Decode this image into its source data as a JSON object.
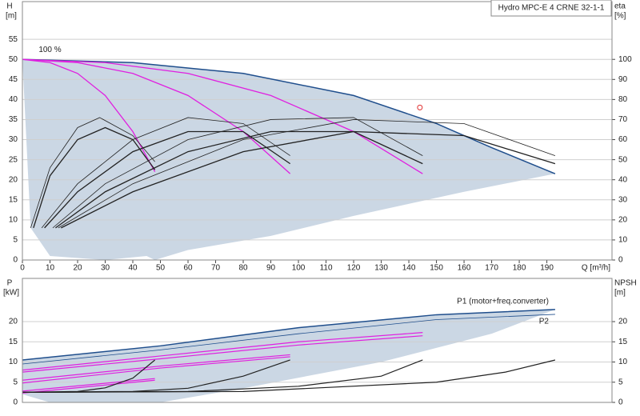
{
  "chart_data": [
    {
      "type": "line",
      "title": "Hydro MPC-E 4 CRNE 32-1-1",
      "xlabel": "Q [m³/h]",
      "ylabel": "H",
      "yunit": "[m]",
      "y2label": "eta",
      "y2unit": "[%]",
      "annotation": {
        "text": "100 %",
        "x": 10,
        "y": 51
      },
      "xlim": [
        0,
        213.6
      ],
      "xticks": [
        0,
        10,
        20,
        30,
        40,
        50,
        60,
        70,
        80,
        90,
        100,
        110,
        120,
        130,
        140,
        150,
        160,
        170,
        180,
        190
      ],
      "ylim": [
        0,
        64.4
      ],
      "yticks": [
        0,
        5,
        10,
        15,
        20,
        25,
        30,
        35,
        40,
        45,
        50,
        55
      ],
      "y2lim": [
        0,
        128.8
      ],
      "y2ticks": [
        0,
        10,
        20,
        30,
        40,
        50,
        60,
        70,
        80,
        90,
        100
      ],
      "grid": true,
      "area": {
        "color": "#cbd7e4",
        "x": [
          0,
          40,
          80,
          120,
          150,
          170,
          193,
          160,
          120,
          90,
          60,
          48,
          45,
          30,
          10,
          3,
          0
        ],
        "values": [
          50,
          49.2,
          46.5,
          41,
          34,
          28,
          21.5,
          17,
          11,
          6,
          2.5,
          0,
          1,
          0,
          1,
          8,
          50
        ]
      },
      "marker": {
        "color": "#e03030",
        "x": 144,
        "y": 38
      },
      "series": [
        {
          "color": "#1f4e8c",
          "width": 1.5,
          "x": [
            0,
            40,
            80,
            120,
            150,
            170,
            193
          ],
          "values": [
            50,
            49.2,
            46.5,
            41,
            34,
            28,
            21.5
          ]
        },
        {
          "color": "#e020e0",
          "width": 1.3,
          "x": [
            0,
            10,
            20,
            30,
            40,
            48
          ],
          "values": [
            50,
            49.2,
            46.5,
            41,
            32,
            22
          ]
        },
        {
          "color": "#e020e0",
          "width": 1.3,
          "x": [
            0,
            20,
            40,
            60,
            80,
            97
          ],
          "values": [
            50,
            49.2,
            46.5,
            41,
            32,
            21.5
          ]
        },
        {
          "color": "#e020e0",
          "width": 1.3,
          "x": [
            0,
            30,
            60,
            90,
            120,
            145
          ],
          "values": [
            50,
            49.2,
            46.5,
            41,
            32,
            21.5
          ]
        },
        {
          "color": "#222222",
          "width": 0.8,
          "axis": "y2",
          "x": [
            3,
            10,
            20,
            28,
            40,
            48
          ],
          "values": [
            16,
            46,
            66,
            71,
            62,
            49
          ]
        },
        {
          "color": "#222222",
          "width": 1.3,
          "axis": "y2",
          "x": [
            4,
            10,
            20,
            30,
            40,
            48
          ],
          "values": [
            16,
            42,
            60,
            66,
            60,
            45
          ]
        },
        {
          "color": "#222222",
          "width": 0.8,
          "axis": "y2",
          "x": [
            7,
            20,
            40,
            60,
            80,
            97
          ],
          "values": [
            16,
            38,
            60,
            71,
            68,
            52
          ]
        },
        {
          "color": "#222222",
          "width": 1.3,
          "axis": "y2",
          "x": [
            8,
            20,
            40,
            60,
            80,
            97
          ],
          "values": [
            16,
            34,
            54,
            64,
            64,
            48
          ]
        },
        {
          "color": "#222222",
          "width": 0.8,
          "axis": "y2",
          "x": [
            11,
            30,
            60,
            90,
            120,
            145
          ],
          "values": [
            16,
            38,
            60,
            70,
            71,
            52
          ]
        },
        {
          "color": "#222222",
          "width": 1.3,
          "axis": "y2",
          "x": [
            12,
            30,
            60,
            90,
            120,
            145
          ],
          "values": [
            16,
            34,
            54,
            64,
            64,
            48
          ]
        },
        {
          "color": "#222222",
          "width": 0.8,
          "axis": "y2",
          "x": [
            13,
            40,
            80,
            120,
            160,
            193
          ],
          "values": [
            16,
            38,
            60,
            70,
            68,
            52
          ]
        },
        {
          "color": "#222222",
          "width": 1.3,
          "axis": "y2",
          "x": [
            14,
            40,
            80,
            120,
            160,
            193
          ],
          "values": [
            16,
            34,
            54,
            64,
            62,
            48
          ]
        }
      ]
    },
    {
      "type": "line",
      "ylabel": "P",
      "yunit": "[kW]",
      "y2label": "NPSH",
      "y2unit": "[m]",
      "xlim": [
        0,
        213.6
      ],
      "ylim": [
        0,
        30.7
      ],
      "yticks": [
        0,
        5,
        10,
        15,
        20
      ],
      "y2lim": [
        0,
        30.7
      ],
      "y2ticks": [
        0,
        5,
        10,
        15,
        20
      ],
      "grid": true,
      "area": {
        "color": "#cbd7e4",
        "x": [
          0,
          50,
          100,
          150,
          193,
          170,
          130,
          80,
          50,
          10,
          0
        ],
        "values": [
          10.5,
          14,
          18.5,
          21.7,
          23,
          17,
          10,
          3.5,
          0,
          0,
          2
        ]
      },
      "series": [
        {
          "name": "P1 (motor+freq.converter)",
          "color": "#1f4e8c",
          "width": 1.5,
          "x": [
            0,
            50,
            100,
            150,
            193
          ],
          "values": [
            10.5,
            14,
            18.5,
            21.7,
            23
          ]
        },
        {
          "name": "P2",
          "color": "#1f4e8c",
          "width": 0.8,
          "x": [
            0,
            50,
            100,
            150,
            193
          ],
          "values": [
            9.5,
            13,
            17,
            20.5,
            21.8
          ]
        },
        {
          "color": "#e020e0",
          "width": 1.2,
          "x": [
            0,
            50,
            100,
            145
          ],
          "values": [
            8,
            11.5,
            15,
            17.3
          ]
        },
        {
          "color": "#e020e0",
          "width": 1.2,
          "x": [
            0,
            50,
            100,
            145
          ],
          "values": [
            7.5,
            10.8,
            14.2,
            16.5
          ]
        },
        {
          "color": "#e020e0",
          "width": 1.2,
          "x": [
            0,
            50,
            97
          ],
          "values": [
            5.5,
            9,
            11.8
          ]
        },
        {
          "color": "#e020e0",
          "width": 1.2,
          "x": [
            0,
            50,
            97
          ],
          "values": [
            4.8,
            8.5,
            11.3
          ]
        },
        {
          "color": "#e020e0",
          "width": 1.2,
          "x": [
            0,
            48
          ],
          "values": [
            2.8,
            5.9
          ]
        },
        {
          "color": "#e020e0",
          "width": 1.2,
          "x": [
            0,
            48
          ],
          "values": [
            2.3,
            5.5
          ]
        },
        {
          "color": "#222222",
          "width": 1.2,
          "axis": "y2",
          "x": [
            0,
            20,
            30,
            40,
            48
          ],
          "values": [
            2.5,
            2.7,
            3.6,
            6,
            10.5
          ]
        },
        {
          "color": "#222222",
          "width": 1.2,
          "axis": "y2",
          "x": [
            0,
            40,
            60,
            80,
            97
          ],
          "values": [
            2.5,
            2.7,
            3.5,
            6.5,
            10.5
          ]
        },
        {
          "color": "#222222",
          "width": 1.2,
          "axis": "y2",
          "x": [
            0,
            60,
            100,
            130,
            145
          ],
          "values": [
            2.5,
            2.7,
            4,
            6.5,
            10.5
          ]
        },
        {
          "color": "#222222",
          "width": 1.2,
          "axis": "y2",
          "x": [
            0,
            80,
            150,
            175,
            193
          ],
          "values": [
            2.5,
            2.7,
            5,
            7.5,
            10.5
          ]
        }
      ]
    }
  ]
}
